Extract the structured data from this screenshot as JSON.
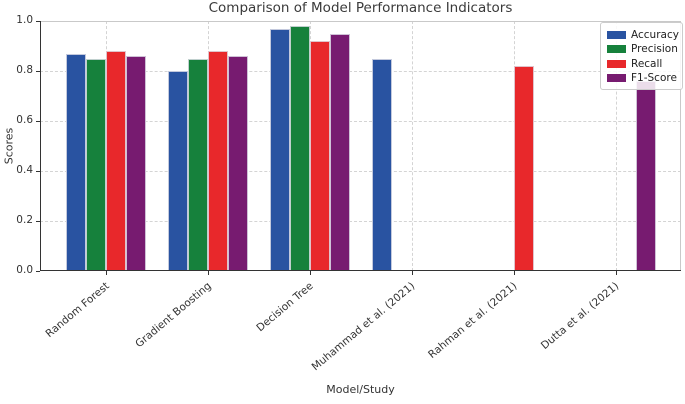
{
  "chart_data": {
    "type": "bar",
    "title": "Comparison of Model Performance Indicators",
    "xlabel": "Model/Study",
    "ylabel": "Scores",
    "ylim": [
      0.0,
      1.0
    ],
    "ytick_labels": [
      "0.0",
      "0.2",
      "0.4",
      "0.6",
      "0.8",
      "1.0"
    ],
    "ytick_values": [
      0.0,
      0.2,
      0.4,
      0.6,
      0.8,
      1.0
    ],
    "grid": "dashed, both axes",
    "legend_position": "upper right",
    "categories": [
      "Random Forest",
      "Gradient Boosting",
      "Decision Tree",
      "Muhammad et al. (2021)",
      "Rahman et al. (2021)",
      "Dutta et al. (2021)"
    ],
    "series": [
      {
        "name": "Accuracy",
        "color": "#2953a1",
        "values": [
          0.87,
          0.8,
          0.97,
          0.85,
          null,
          null
        ]
      },
      {
        "name": "Precision",
        "color": "#16813c",
        "values": [
          0.85,
          0.85,
          0.98,
          null,
          null,
          null
        ]
      },
      {
        "name": "Recall",
        "color": "#e8282b",
        "values": [
          0.88,
          0.88,
          0.92,
          null,
          0.82,
          null
        ]
      },
      {
        "name": "F1-Score",
        "color": "#771b70",
        "values": [
          0.86,
          0.86,
          0.95,
          null,
          null,
          0.76
        ]
      }
    ]
  }
}
